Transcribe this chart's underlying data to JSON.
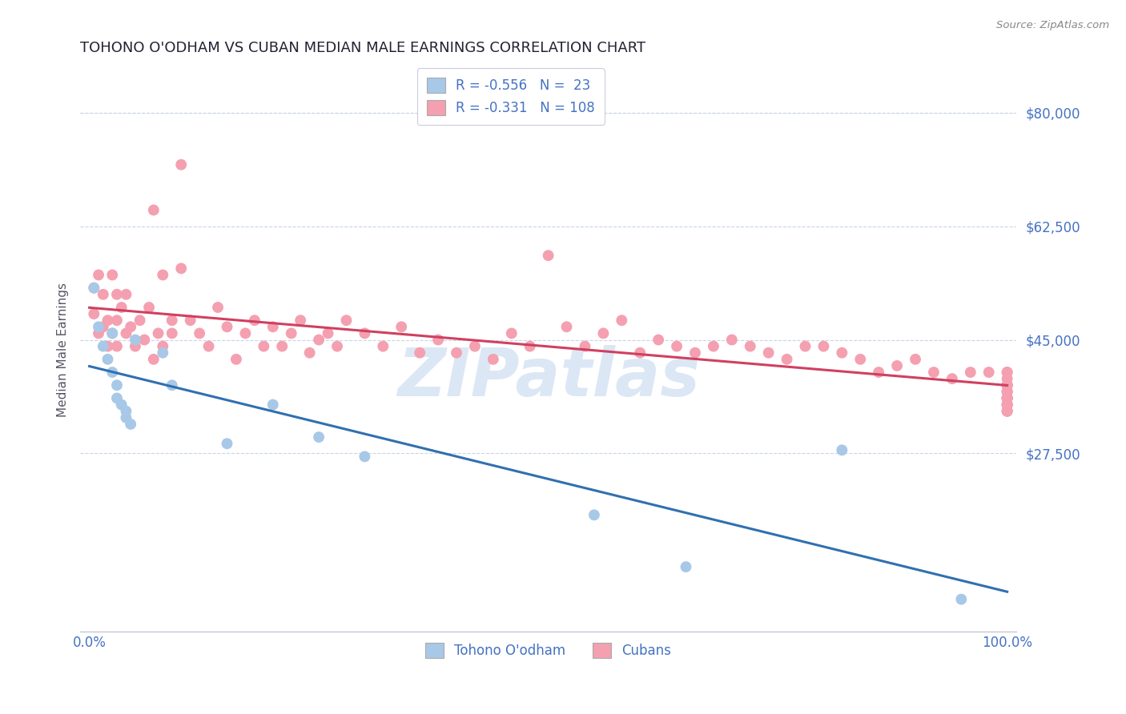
{
  "title": "TOHONO O'ODHAM VS CUBAN MEDIAN MALE EARNINGS CORRELATION CHART",
  "source": "Source: ZipAtlas.com",
  "ylabel": "Median Male Earnings",
  "color_blue": "#a8c8e8",
  "color_pink": "#f4a0b0",
  "color_blue_line": "#3070b0",
  "color_pink_line": "#d04060",
  "color_axis_labels": "#4472c4",
  "watermark_text": "ZIPatlas",
  "background_color": "#ffffff",
  "ylim": [
    0,
    87000
  ],
  "xlim": [
    -0.01,
    1.01
  ],
  "ytick_positions": [
    27500,
    45000,
    62500,
    80000
  ],
  "ytick_labels": [
    "$27,500",
    "$45,000",
    "$62,500",
    "$80,000"
  ],
  "tohono_x": [
    0.005,
    0.01,
    0.015,
    0.02,
    0.025,
    0.025,
    0.03,
    0.03,
    0.035,
    0.04,
    0.04,
    0.045,
    0.05,
    0.08,
    0.09,
    0.15,
    0.2,
    0.25,
    0.3,
    0.55,
    0.65,
    0.82,
    0.95
  ],
  "tohono_y": [
    53000,
    47000,
    44000,
    42000,
    40000,
    46000,
    38000,
    36000,
    35000,
    34000,
    33000,
    32000,
    45000,
    43000,
    38000,
    29000,
    35000,
    30000,
    27000,
    18000,
    10000,
    28000,
    5000
  ],
  "cuban_x": [
    0.005,
    0.005,
    0.01,
    0.01,
    0.015,
    0.015,
    0.02,
    0.02,
    0.025,
    0.025,
    0.03,
    0.03,
    0.03,
    0.035,
    0.04,
    0.04,
    0.045,
    0.05,
    0.055,
    0.06,
    0.065,
    0.07,
    0.07,
    0.075,
    0.08,
    0.08,
    0.09,
    0.09,
    0.1,
    0.1,
    0.11,
    0.12,
    0.13,
    0.14,
    0.15,
    0.16,
    0.17,
    0.18,
    0.19,
    0.2,
    0.21,
    0.22,
    0.23,
    0.24,
    0.25,
    0.26,
    0.27,
    0.28,
    0.3,
    0.32,
    0.34,
    0.36,
    0.38,
    0.4,
    0.42,
    0.44,
    0.46,
    0.48,
    0.5,
    0.52,
    0.54,
    0.56,
    0.58,
    0.6,
    0.62,
    0.64,
    0.66,
    0.68,
    0.7,
    0.72,
    0.74,
    0.76,
    0.78,
    0.8,
    0.82,
    0.84,
    0.86,
    0.88,
    0.9,
    0.92,
    0.94,
    0.96,
    0.98,
    1.0,
    1.0,
    1.0,
    1.0,
    1.0,
    1.0,
    1.0,
    1.0,
    1.0,
    1.0,
    1.0,
    1.0,
    1.0,
    1.0,
    1.0,
    1.0,
    1.0,
    1.0,
    1.0,
    1.0,
    1.0,
    1.0,
    1.0,
    1.0,
    1.0
  ],
  "cuban_y": [
    53000,
    49000,
    55000,
    46000,
    52000,
    47000,
    48000,
    44000,
    55000,
    46000,
    52000,
    48000,
    44000,
    50000,
    52000,
    46000,
    47000,
    44000,
    48000,
    45000,
    50000,
    42000,
    65000,
    46000,
    44000,
    55000,
    46000,
    48000,
    72000,
    56000,
    48000,
    46000,
    44000,
    50000,
    47000,
    42000,
    46000,
    48000,
    44000,
    47000,
    44000,
    46000,
    48000,
    43000,
    45000,
    46000,
    44000,
    48000,
    46000,
    44000,
    47000,
    43000,
    45000,
    43000,
    44000,
    42000,
    46000,
    44000,
    58000,
    47000,
    44000,
    46000,
    48000,
    43000,
    45000,
    44000,
    43000,
    44000,
    45000,
    44000,
    43000,
    42000,
    44000,
    44000,
    43000,
    42000,
    40000,
    41000,
    42000,
    40000,
    39000,
    40000,
    40000,
    38000,
    36000,
    40000,
    37000,
    38000,
    39000,
    36000,
    40000,
    38000,
    37000,
    36000,
    35000,
    38000,
    35000,
    34000,
    36000,
    35000,
    37000,
    34000,
    36000,
    35000,
    38000,
    35000,
    36000,
    34000
  ]
}
